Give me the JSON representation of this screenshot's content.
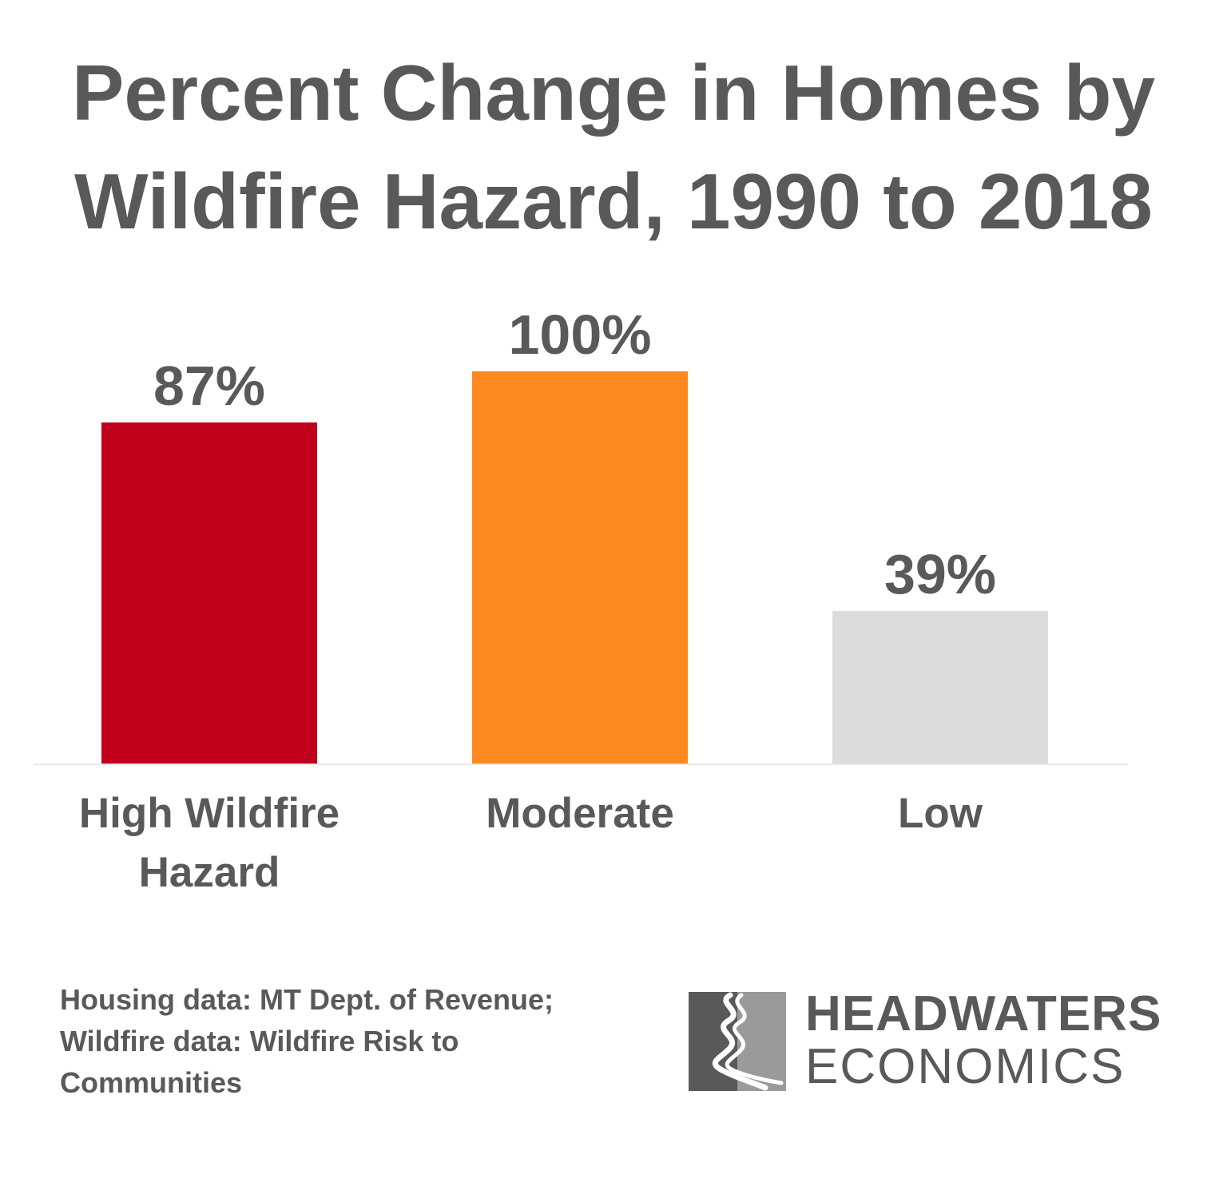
{
  "title": {
    "line1": "Percent Change in Homes by",
    "line2": "Wildfire Hazard, 1990 to 2018"
  },
  "chart_data": {
    "type": "bar",
    "title": "Percent Change in Homes by Wildfire Hazard, 1990 to 2018",
    "categories": [
      [
        "High Wildfire",
        "Hazard"
      ],
      [
        "Moderate"
      ],
      [
        "Low"
      ]
    ],
    "values": [
      87,
      100,
      39
    ],
    "value_labels": [
      "87%",
      "100%",
      "39%"
    ],
    "unit": "%",
    "colors": [
      "#c0001b",
      "#fc8820",
      "#dcdcdc"
    ],
    "baseline_color": "#e8e8e8",
    "grid": false,
    "legend": "none",
    "ylim": [
      0,
      100
    ]
  },
  "source": {
    "line1": "Housing data: MT Dept. of Revenue;",
    "line2": "Wildfire data: Wildfire Risk to",
    "line3": "Communities"
  },
  "logo": {
    "word1": "HEADWATERS",
    "word2": "ECONOMICS",
    "colors": {
      "dark": "#595959",
      "light": "#9a9a9a"
    }
  }
}
